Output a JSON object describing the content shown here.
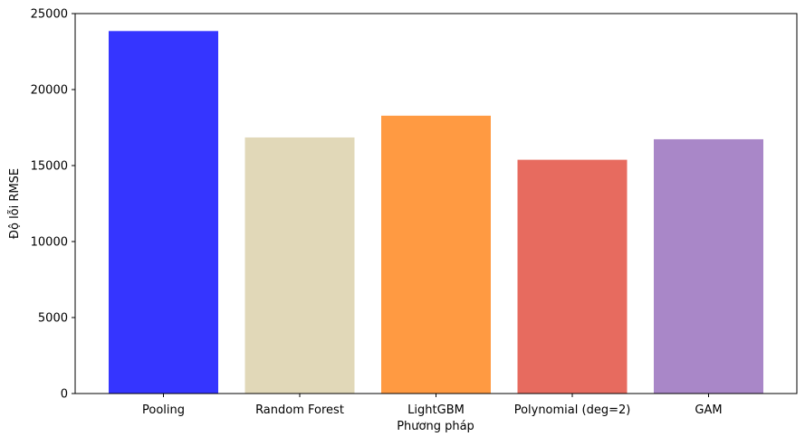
{
  "chart_data": {
    "type": "bar",
    "title": "",
    "xlabel": "Phương pháp",
    "ylabel": "Độ lỗi RMSE",
    "categories": [
      "Pooling",
      "Random Forest",
      "LightGBM",
      "Polynomial (deg=2)",
      "GAM"
    ],
    "values": [
      23850,
      16850,
      18280,
      15380,
      16730
    ],
    "colors": [
      "#3535ff",
      "#e1d8b8",
      "#ff9a42",
      "#e76b5f",
      "#a987c8"
    ],
    "ylim": [
      0,
      25000
    ],
    "yticks": [
      0,
      5000,
      10000,
      15000,
      20000,
      25000
    ],
    "ytick_labels": [
      "0",
      "5000",
      "10000",
      "15000",
      "20000",
      "25000"
    ],
    "grid": false,
    "legend": "none"
  }
}
